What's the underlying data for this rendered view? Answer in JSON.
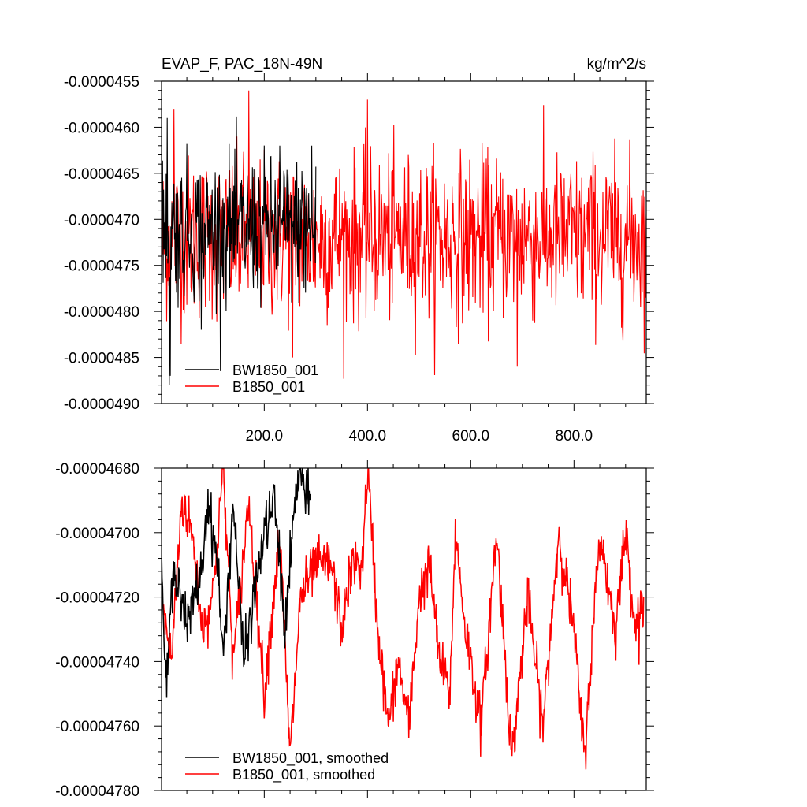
{
  "chart_data": [
    {
      "type": "line",
      "title": "EVAP_F, PAC_18N-49N",
      "units": "kg/m^2/s",
      "xlabel": "",
      "ylabel": "",
      "xlim": [
        1,
        940
      ],
      "ylim": [
        -4.9e-05,
        -4.55e-05
      ],
      "x_ticks": [
        200,
        400,
        600,
        800
      ],
      "x_tick_labels": [
        "200.0",
        "400.0",
        "600.0",
        "800.0"
      ],
      "y_ticks": [
        -4.55e-05,
        -4.6e-05,
        -4.65e-05,
        -4.7e-05,
        -4.75e-05,
        -4.8e-05,
        -4.85e-05,
        -4.9e-05
      ],
      "y_tick_labels": [
        "-0.0000455",
        "-0.0000460",
        "-0.0000465",
        "-0.0000470",
        "-0.0000475",
        "-0.0000480",
        "-0.0000485",
        "-0.0000490"
      ],
      "grid": false,
      "legend_position": "bottom-left",
      "series": [
        {
          "name": "BW1850_001",
          "color": "#000000",
          "x_range": [
            1,
            300
          ],
          "mean": -4.71e-05,
          "amplitude": 7e-07,
          "points": [
            [
              12,
              -4.59e-05
            ],
            [
              16,
              -4.88e-05
            ],
            [
              18,
              -4.87e-05
            ],
            [
              78,
              -4.82e-05
            ],
            [
              230,
              -4.62e-05
            ],
            [
              292,
              -4.62e-05
            ]
          ]
        },
        {
          "name": "B1850_001",
          "color": "#ff0000",
          "x_range": [
            1,
            940
          ],
          "mean": -4.72e-05,
          "amplitude": 8e-07,
          "points": [
            [
              25,
              -4.58e-05
            ],
            [
              170,
              -4.56e-05
            ],
            [
              255,
              -4.85e-05
            ],
            [
              400,
              -4.57e-05
            ],
            [
              690,
              -4.86e-05
            ]
          ]
        }
      ]
    },
    {
      "type": "line",
      "title": "",
      "xlabel": "",
      "ylabel": "",
      "xlim": [
        1,
        940
      ],
      "ylim": [
        -4.78e-05,
        -4.68e-05
      ],
      "x_ticks": [
        200,
        400,
        600,
        800
      ],
      "y_ticks": [
        -4.68e-05,
        -4.7e-05,
        -4.72e-05,
        -4.74e-05,
        -4.76e-05,
        -4.78e-05
      ],
      "y_tick_labels": [
        "-0.00004680",
        "-0.00004700",
        "-0.00004720",
        "-0.00004740",
        "-0.00004760",
        "-0.00004780"
      ],
      "grid": false,
      "legend_position": "bottom-left",
      "series": [
        {
          "name": "BW1850_001, smoothed",
          "color": "#000000",
          "x": [
            1,
            10,
            20,
            30,
            50,
            80,
            90,
            100,
            110,
            120,
            140,
            160,
            180,
            200,
            220,
            240,
            260,
            270,
            280,
            290
          ],
          "y": [
            -4.71e-05,
            -4.75e-05,
            -4.72e-05,
            -4.71e-05,
            -4.73e-05,
            -4.71e-05,
            -4.69e-05,
            -4.7e-05,
            -4.71e-05,
            -4.74e-05,
            -4.69e-05,
            -4.74e-05,
            -4.72e-05,
            -4.7e-05,
            -4.69e-05,
            -4.73e-05,
            -4.69e-05,
            -4.68e-05,
            -4.69e-05,
            -4.69e-05
          ]
        },
        {
          "name": "B1850_001, smoothed",
          "color": "#ff0000",
          "x": [
            1,
            20,
            40,
            60,
            80,
            100,
            120,
            140,
            170,
            200,
            230,
            250,
            270,
            300,
            330,
            350,
            370,
            390,
            400,
            420,
            440,
            460,
            480,
            500,
            520,
            540,
            560,
            570,
            590,
            620,
            650,
            680,
            710,
            740,
            770,
            800,
            820,
            850,
            880,
            900,
            920,
            935
          ],
          "y": [
            -4.72e-05,
            -4.74e-05,
            -4.69e-05,
            -4.7e-05,
            -4.73e-05,
            -4.72e-05,
            -4.68e-05,
            -4.74e-05,
            -4.69e-05,
            -4.75e-05,
            -4.7e-05,
            -4.77e-05,
            -4.72e-05,
            -4.71e-05,
            -4.71e-05,
            -4.73e-05,
            -4.71e-05,
            -4.71e-05,
            -4.68e-05,
            -4.73e-05,
            -4.76e-05,
            -4.74e-05,
            -4.76e-05,
            -4.72e-05,
            -4.71e-05,
            -4.74e-05,
            -4.75e-05,
            -4.7e-05,
            -4.73e-05,
            -4.76e-05,
            -4.7e-05,
            -4.77e-05,
            -4.72e-05,
            -4.76e-05,
            -4.7e-05,
            -4.73e-05,
            -4.77e-05,
            -4.7e-05,
            -4.73e-05,
            -4.7e-05,
            -4.73e-05,
            -4.72e-05
          ]
        }
      ]
    }
  ]
}
